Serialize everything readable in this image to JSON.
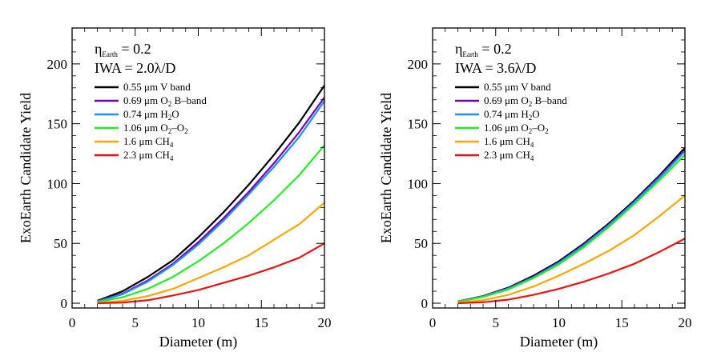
{
  "chart_data": [
    {
      "type": "line",
      "annotation": {
        "eta_symbol": "η",
        "eta_sub": "Earth",
        "eta_value": " = 0.2",
        "iwa_label": "IWA = 2.0λ/D"
      },
      "xlabel": "Diameter (m)",
      "ylabel": "ExoEarth Candidate Yield",
      "xlim": [
        0,
        20
      ],
      "ylim": [
        -4,
        230
      ],
      "xticks": [
        0,
        5,
        10,
        15,
        20
      ],
      "yticks": [
        0,
        50,
        100,
        150,
        200
      ],
      "grid": false,
      "legend_position": "top-left",
      "series": [
        {
          "name": "0.55 μm V band",
          "legend_parts": [
            {
              "t": "0.55 μm V band"
            }
          ],
          "color": "#000000",
          "x": [
            2,
            4,
            6,
            8,
            10,
            12,
            14,
            16,
            18,
            20
          ],
          "y": [
            2,
            10,
            22,
            36,
            55,
            76,
            99,
            124,
            151,
            182
          ]
        },
        {
          "name": "0.69 μm O2 B-band",
          "legend_parts": [
            {
              "t": "0.69 μm O"
            },
            {
              "t": "2",
              "sub": true
            },
            {
              "t": " B–band"
            }
          ],
          "color": "#7a00b4",
          "x": [
            2,
            4,
            6,
            8,
            10,
            12,
            14,
            16,
            18,
            20
          ],
          "y": [
            1.5,
            8,
            19,
            33,
            51,
            71,
            93,
            117,
            143,
            172
          ]
        },
        {
          "name": "0.74 μm H2O",
          "legend_parts": [
            {
              "t": "0.74 μm H"
            },
            {
              "t": "2",
              "sub": true
            },
            {
              "t": "O"
            }
          ],
          "color": "#1e90ff",
          "x": [
            2,
            4,
            6,
            8,
            10,
            12,
            14,
            16,
            18,
            20
          ],
          "y": [
            1.5,
            7.5,
            18,
            32,
            49,
            69,
            91,
            114,
            139,
            169
          ]
        },
        {
          "name": "1.06 μm O2–O2",
          "legend_parts": [
            {
              "t": "1.06 μm O"
            },
            {
              "t": "2",
              "sub": true
            },
            {
              "t": "–O"
            },
            {
              "t": "2",
              "sub": true
            }
          ],
          "color": "#22ee22",
          "x": [
            2,
            4,
            6,
            8,
            10,
            12,
            14,
            16,
            18,
            20
          ],
          "y": [
            1,
            5,
            12,
            22,
            35,
            50,
            67,
            86,
            107,
            132
          ]
        },
        {
          "name": "1.6 μm CH4",
          "legend_parts": [
            {
              "t": "1.6 μm CH"
            },
            {
              "t": "4",
              "sub": true
            }
          ],
          "color": "#ffa500",
          "x": [
            2,
            4,
            6,
            8,
            10,
            12,
            14,
            16,
            18,
            20
          ],
          "y": [
            0.3,
            2,
            6,
            12,
            21,
            30,
            40,
            53,
            66,
            84
          ]
        },
        {
          "name": "2.3 μm CH4",
          "legend_parts": [
            {
              "t": "2.3 μm CH"
            },
            {
              "t": "4",
              "sub": true
            }
          ],
          "color": "#ee1111",
          "x": [
            2,
            4,
            6,
            8,
            10,
            12,
            14,
            16,
            18,
            20
          ],
          "y": [
            0,
            0.5,
            2.5,
            6.5,
            11,
            17,
            23,
            30,
            38,
            50
          ]
        }
      ]
    },
    {
      "type": "line",
      "annotation": {
        "eta_symbol": "η",
        "eta_sub": "Earth",
        "eta_value": " = 0.2",
        "iwa_label": "IWA = 3.6λ/D"
      },
      "xlabel": "Diameter (m)",
      "ylabel": "ExoEarth Candidate Yield",
      "xlim": [
        0,
        20
      ],
      "ylim": [
        -4,
        230
      ],
      "xticks": [
        0,
        5,
        10,
        15,
        20
      ],
      "yticks": [
        0,
        50,
        100,
        150,
        200
      ],
      "grid": false,
      "legend_position": "top-left",
      "series": [
        {
          "name": "0.55 μm V band",
          "legend_parts": [
            {
              "t": "0.55 μm V band"
            }
          ],
          "color": "#000000",
          "x": [
            2,
            4,
            6,
            8,
            10,
            12,
            14,
            16,
            18,
            20
          ],
          "y": [
            1.5,
            6,
            13,
            23,
            35,
            50,
            67,
            86,
            107,
            130
          ]
        },
        {
          "name": "0.69 μm O2 B-band",
          "legend_parts": [
            {
              "t": "0.69 μm O"
            },
            {
              "t": "2",
              "sub": true
            },
            {
              "t": " B–band"
            }
          ],
          "color": "#7a00b4",
          "x": [
            2,
            4,
            6,
            8,
            10,
            12,
            14,
            16,
            18,
            20
          ],
          "y": [
            1.4,
            5.8,
            12.5,
            22,
            34,
            49,
            66,
            85,
            106,
            128
          ]
        },
        {
          "name": "0.74 μm H2O",
          "legend_parts": [
            {
              "t": "0.74 μm H"
            },
            {
              "t": "2",
              "sub": true
            },
            {
              "t": "O"
            }
          ],
          "color": "#1e90ff",
          "x": [
            2,
            4,
            6,
            8,
            10,
            12,
            14,
            16,
            18,
            20
          ],
          "y": [
            1.3,
            5.6,
            12.3,
            21.7,
            33.6,
            48.5,
            65.5,
            84.5,
            105,
            127
          ]
        },
        {
          "name": "1.06 μm O2–O2",
          "legend_parts": [
            {
              "t": "1.06 μm O"
            },
            {
              "t": "2",
              "sub": true
            },
            {
              "t": "–O"
            },
            {
              "t": "2",
              "sub": true
            }
          ],
          "color": "#22ee22",
          "x": [
            2,
            4,
            6,
            8,
            10,
            12,
            14,
            16,
            18,
            20
          ],
          "y": [
            1.2,
            5.2,
            11.5,
            21,
            32.5,
            47,
            64,
            83,
            103,
            124
          ]
        },
        {
          "name": "1.6 μm CH4",
          "legend_parts": [
            {
              "t": "1.6 μm CH"
            },
            {
              "t": "4",
              "sub": true
            }
          ],
          "color": "#ffa500",
          "x": [
            2,
            4,
            6,
            8,
            10,
            12,
            14,
            16,
            18,
            20
          ],
          "y": [
            0.5,
            2.5,
            7,
            14,
            23,
            33,
            44,
            57,
            73,
            90
          ]
        },
        {
          "name": "2.3 μm CH4",
          "legend_parts": [
            {
              "t": "2.3 μm CH"
            },
            {
              "t": "4",
              "sub": true
            }
          ],
          "color": "#ee1111",
          "x": [
            2,
            4,
            6,
            8,
            10,
            12,
            14,
            16,
            18,
            20
          ],
          "y": [
            0,
            0.8,
            3,
            7,
            12,
            18,
            25,
            33,
            43,
            54
          ]
        }
      ]
    }
  ]
}
